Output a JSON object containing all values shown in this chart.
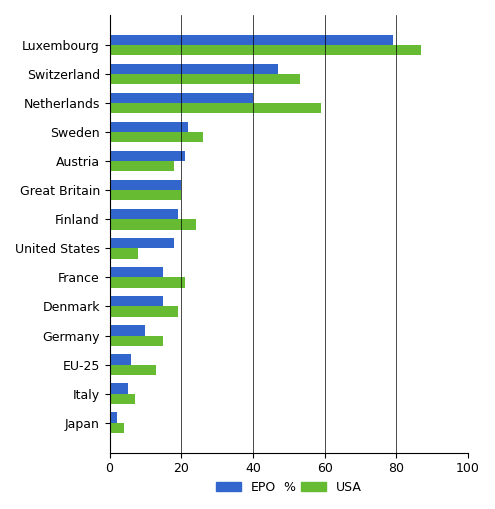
{
  "categories": [
    "Luxembourg",
    "Switzerland",
    "Netherlands",
    "Sweden",
    "Austria",
    "Great Britain",
    "Finland",
    "United States",
    "France",
    "Denmark",
    "Germany",
    "EU-25",
    "Italy",
    "Japan"
  ],
  "epo": [
    79,
    47,
    40,
    22,
    21,
    20,
    19,
    18,
    15,
    15,
    10,
    6,
    5,
    2
  ],
  "usa": [
    87,
    53,
    59,
    26,
    18,
    20,
    24,
    8,
    21,
    19,
    15,
    13,
    7,
    4
  ],
  "epo_color": "#3366cc",
  "usa_color": "#66bb33",
  "xlabel": "%",
  "xlim": [
    0,
    100
  ],
  "xticks": [
    0,
    20,
    40,
    60,
    80,
    100
  ],
  "legend_labels": [
    "EPO",
    "USA"
  ],
  "background_color": "#ffffff",
  "bar_height": 0.35,
  "title": ""
}
